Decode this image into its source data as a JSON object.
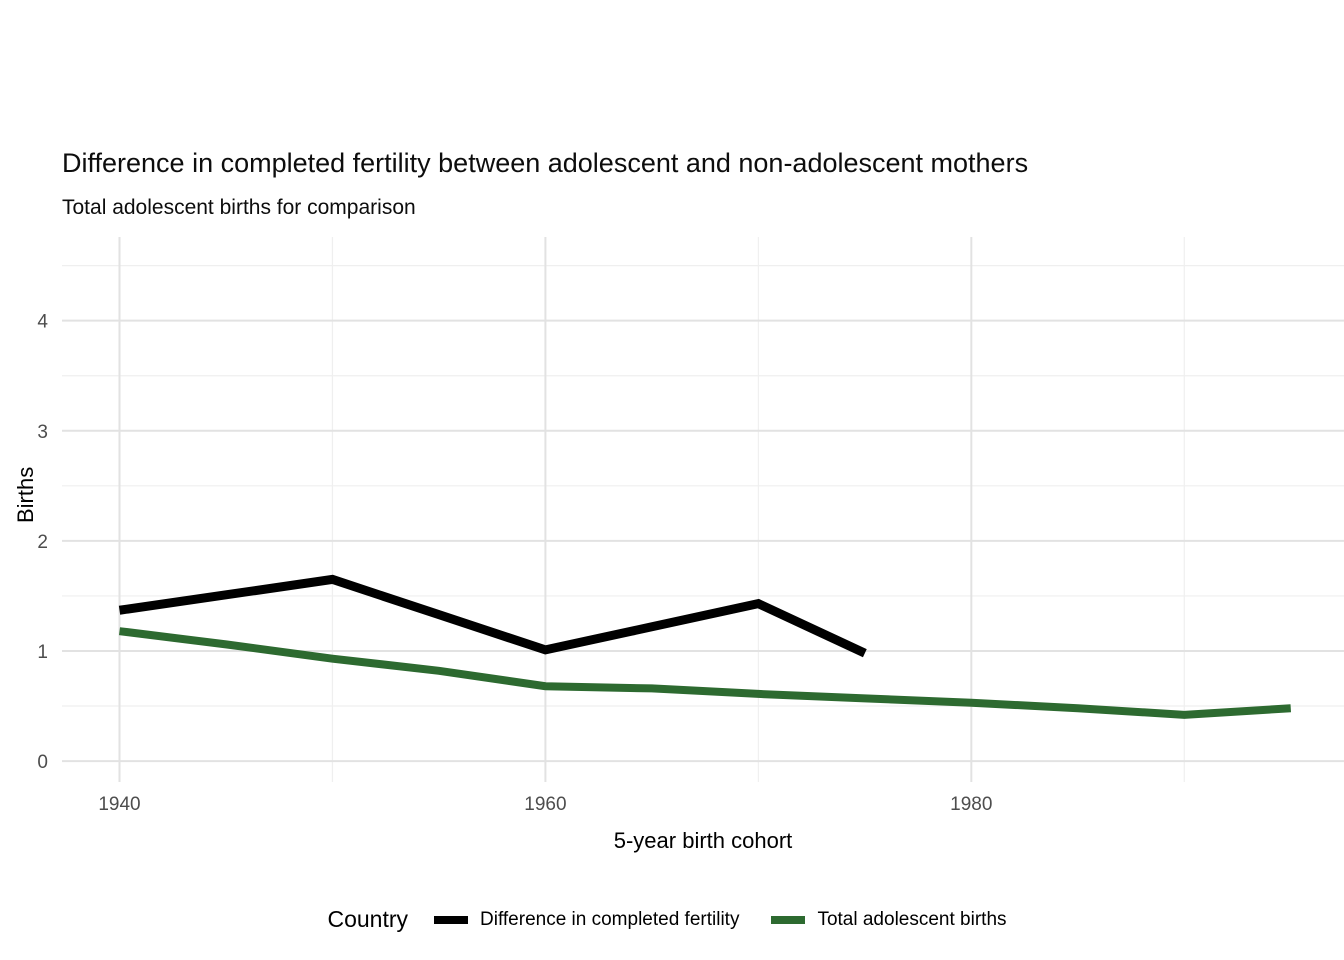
{
  "title": "Difference in completed fertility between adolescent and non-adolescent mothers",
  "subtitle": "Total adolescent births for comparison",
  "chart_data": {
    "type": "line",
    "title": "Difference in completed fertility between adolescent and non-adolescent mothers",
    "subtitle": "Total adolescent births for comparison",
    "xlabel": "5-year birth cohort",
    "ylabel": "Births",
    "legend_title": "Country",
    "legend_position": "bottom",
    "grid": true,
    "xlim": [
      1937.3,
      1997.5
    ],
    "ylim": [
      -0.19,
      4.76
    ],
    "x_major_ticks": [
      1940,
      1960,
      1980
    ],
    "x_minor_ticks": [
      1950,
      1970,
      1990
    ],
    "y_major_ticks": [
      0,
      1,
      2,
      3,
      4
    ],
    "y_minor_ticks": [
      0.5,
      1.5,
      2.5,
      3.5,
      4.5
    ],
    "grid_major_color": "#e2e2e2",
    "grid_minor_color": "#efefef",
    "tick_label_color": "#4d4d4d",
    "series": [
      {
        "name": "Difference in completed fertility",
        "color": "#000000",
        "x": [
          1940,
          1945,
          1950,
          1955,
          1960,
          1965,
          1970,
          1975
        ],
        "values": [
          1.37,
          1.51,
          1.65,
          1.33,
          1.01,
          1.22,
          1.43,
          0.98
        ]
      },
      {
        "name": "Total adolescent births",
        "color": "#2d6a30",
        "x": [
          1940,
          1945,
          1950,
          1955,
          1960,
          1965,
          1970,
          1975,
          1980,
          1985,
          1990,
          1995
        ],
        "values": [
          1.18,
          1.06,
          0.93,
          0.82,
          0.68,
          0.66,
          0.61,
          0.57,
          0.53,
          0.48,
          0.42,
          0.48
        ]
      }
    ]
  }
}
